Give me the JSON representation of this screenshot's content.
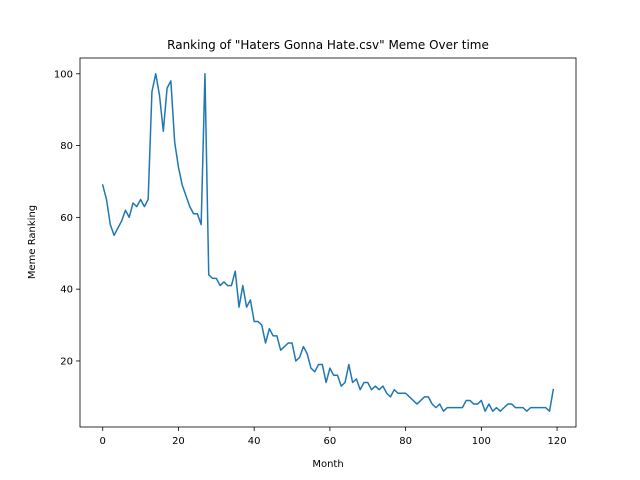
{
  "chart_data": {
    "type": "line",
    "title": "Ranking of \"Haters Gonna Hate.csv\" Meme Over time",
    "xlabel": "Month",
    "ylabel": "Meme Ranking",
    "xlim": [
      -6,
      125
    ],
    "ylim": [
      1.6,
      104.4
    ],
    "xticks": [
      0,
      20,
      40,
      60,
      80,
      100,
      120
    ],
    "yticks": [
      20,
      40,
      60,
      80,
      100
    ],
    "grid": false,
    "legend": "none",
    "line_color": "#1f77b4",
    "series": [
      {
        "x": [
          0,
          1,
          2,
          3,
          4,
          5,
          6,
          7,
          8,
          9,
          10,
          11,
          12,
          13,
          14,
          15,
          16,
          17,
          18,
          19,
          20,
          21,
          22,
          23,
          24,
          25,
          26,
          27,
          28,
          29,
          30,
          31,
          32,
          33,
          34,
          35,
          36,
          37,
          38,
          39,
          40,
          41,
          42,
          43,
          44,
          45,
          46,
          47,
          48,
          49,
          50,
          51,
          52,
          53,
          54,
          55,
          56,
          57,
          58,
          59,
          60,
          61,
          62,
          63,
          64,
          65,
          66,
          67,
          68,
          69,
          70,
          71,
          72,
          73,
          74,
          75,
          76,
          77,
          78,
          79,
          80,
          81,
          82,
          83,
          84,
          85,
          86,
          87,
          88,
          89,
          90,
          91,
          92,
          93,
          94,
          95,
          96,
          97,
          98,
          99,
          100,
          101,
          102,
          103,
          104,
          105,
          106,
          107,
          108,
          109,
          110,
          111,
          112,
          113,
          114,
          115,
          116,
          117,
          118,
          119
        ],
        "y": [
          69,
          65,
          58,
          55,
          57,
          59,
          62,
          60,
          64,
          63,
          65,
          63,
          65,
          95,
          100,
          94,
          84,
          96,
          98,
          81,
          74,
          69,
          66,
          63,
          61,
          61,
          58,
          100,
          44,
          43,
          43,
          41,
          42,
          41,
          41,
          45,
          35,
          41,
          35,
          37,
          31,
          31,
          30,
          25,
          29,
          27,
          27,
          23,
          24,
          25,
          25,
          20,
          21,
          24,
          22,
          18,
          17,
          19,
          19,
          14,
          18,
          16,
          16,
          13,
          14,
          19,
          14,
          15,
          12,
          14,
          14,
          12,
          13,
          12,
          13,
          11,
          10,
          12,
          11,
          11,
          11,
          10,
          9,
          8,
          9,
          10,
          10,
          8,
          7,
          8,
          6,
          7,
          7,
          7,
          7,
          7,
          9,
          9,
          8,
          8,
          9,
          6,
          8,
          6,
          7,
          6,
          7,
          8,
          8,
          7,
          7,
          7,
          6,
          7,
          7,
          7,
          7,
          7,
          6,
          12
        ]
      }
    ]
  }
}
